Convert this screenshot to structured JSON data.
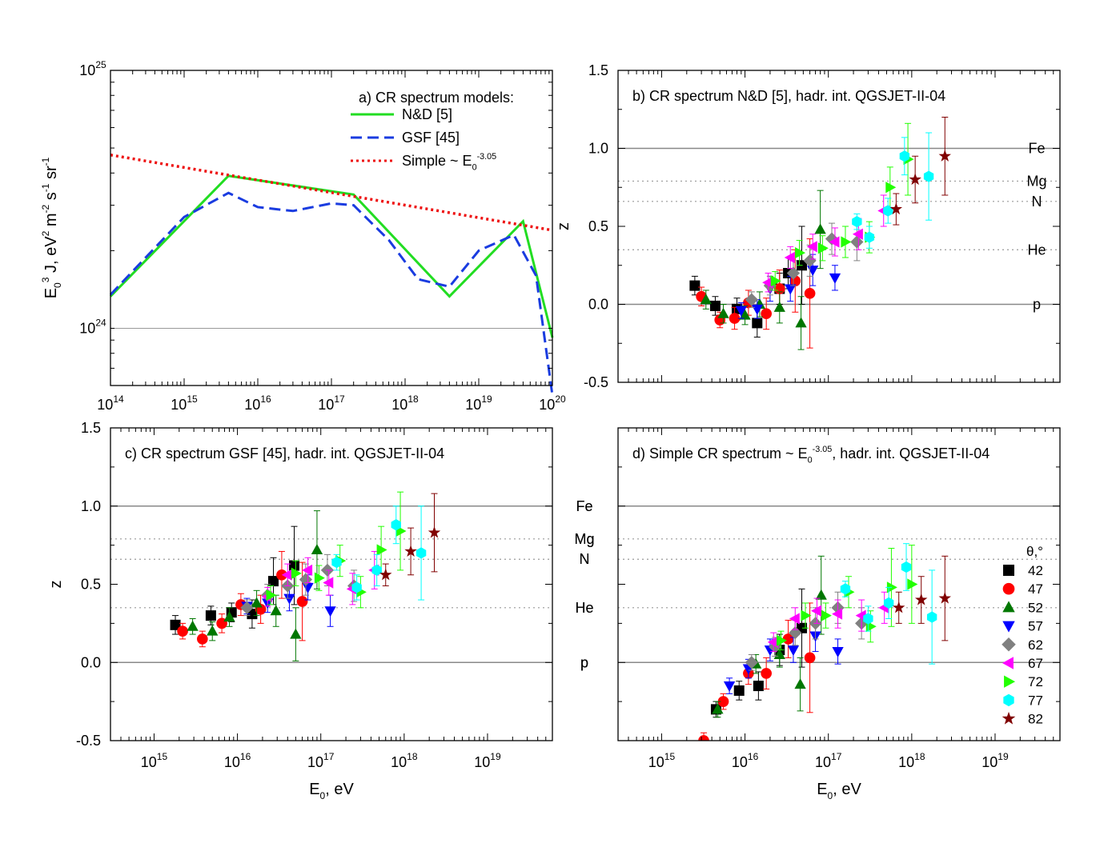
{
  "chart_data": [
    {
      "id": "a",
      "type": "line",
      "title": "a) CR spectrum models:",
      "ylabel": "E0^3 J, eV^2 m^-2 s^-1 sr^-1",
      "xlabel": "",
      "xscale": "log",
      "yscale": "log",
      "xlim": [
        100000000000000.0,
        1e+20
      ],
      "ylim": [
        6e+23,
        1e+25
      ],
      "xticks": [
        "10^14",
        "10^15",
        "10^16",
        "10^17",
        "10^18",
        "10^19",
        "10^20"
      ],
      "yticks": [
        "10^24",
        "10^25"
      ],
      "legend_position": "top-right",
      "series": [
        {
          "name": "N&D [5]",
          "color": "#22dd22",
          "style": "solid",
          "x": [
            100000000000000.0,
            4000000000000000.0,
            2e+17,
            4e+18,
            4e+19,
            1e+20
          ],
          "y": [
            1.33e+24,
            3.9e+24,
            3.3e+24,
            1.33e+24,
            2.6e+24,
            9.2e+23
          ]
        },
        {
          "name": "GSF [45]",
          "color": "#1a3ce0",
          "style": "dashed",
          "x": [
            100000000000000.0,
            1000000000000000.0,
            4000000000000000.0,
            1e+16,
            3e+16,
            1e+17,
            2e+17,
            6e+17,
            1.5e+18,
            4e+18,
            1e+19,
            3e+19,
            6e+19,
            1e+20
          ],
          "y": [
            1.35e+24,
            2.7e+24,
            3.35e+24,
            2.95e+24,
            2.85e+24,
            3.05e+24,
            3e+24,
            2.2e+24,
            1.55e+24,
            1.45e+24,
            2e+24,
            2.3e+24,
            1.6e+24,
            5.5e+23
          ]
        },
        {
          "name": "Simple ~ E0^-3.05",
          "color": "#ee1111",
          "style": "dotted",
          "x": [
            100000000000000.0,
            1e+20
          ],
          "y": [
            4.7e+24,
            2.4e+24
          ]
        }
      ],
      "reference_line": 1e+24
    },
    {
      "id": "b",
      "type": "scatter",
      "title": "b) CR spectrum N&D [5], hadr. int. QGSJET-II-04",
      "ylabel": "z",
      "xlabel": "",
      "xscale": "log",
      "xlim": [
        300000000000000.0,
        6e+19
      ],
      "ylim": [
        -0.5,
        1.5
      ],
      "yticks": [
        "-0.5",
        "0.0",
        "0.5",
        "1.0",
        "1.5"
      ],
      "xticks": [],
      "ref_lines": [
        {
          "label": "Fe",
          "y": 1.0,
          "style": "solid"
        },
        {
          "label": "Mg",
          "y": 0.79,
          "style": "dotted"
        },
        {
          "label": "N",
          "y": 0.66,
          "style": "dotted"
        },
        {
          "label": "He",
          "y": 0.35,
          "style": "dotted"
        },
        {
          "label": "p",
          "y": 0.0,
          "style": "solid"
        }
      ],
      "series": [
        {
          "name": "42",
          "x": [
            2500000000000000.0,
            4400000000000000.0,
            8000000000000000.0,
            1.4e+16,
            2.6e+16,
            4.8e+16,
            3.3e+16
          ],
          "y": [
            0.12,
            -0.01,
            -0.03,
            -0.12,
            0.1,
            0.25,
            0.2
          ],
          "err": [
            0.06,
            0.06,
            0.07,
            0.09,
            0.1,
            0.25,
            0.1
          ]
        },
        {
          "name": "47",
          "x": [
            3000000000000000.0,
            5000000000000000.0,
            7500000000000000.0,
            1.1e+16,
            1.8e+16,
            2.6e+16,
            4e+16,
            6e+16
          ],
          "y": [
            0.05,
            -0.1,
            -0.09,
            0.01,
            -0.06,
            0.1,
            0.15,
            0.07
          ],
          "err": [
            0.06,
            0.05,
            0.07,
            0.08,
            0.1,
            0.12,
            0.2,
            0.35
          ]
        },
        {
          "name": "52",
          "x": [
            3400000000000000.0,
            5500000000000000.0,
            1e+16,
            1.5e+16,
            2.6e+16,
            4.7e+16,
            8e+16
          ],
          "y": [
            0.03,
            -0.06,
            -0.07,
            0.0,
            -0.02,
            -0.12,
            0.48
          ],
          "err": [
            0.06,
            0.06,
            0.06,
            0.08,
            0.1,
            0.17,
            0.25
          ]
        },
        {
          "name": "57",
          "x": [
            9000000000000000.0,
            1.4e+16,
            2e+16,
            3.5e+16,
            6.5e+16,
            1.2e+17
          ],
          "y": [
            -0.04,
            -0.03,
            0.1,
            0.1,
            0.22,
            0.17
          ],
          "err": [
            0.05,
            0.06,
            0.08,
            0.08,
            0.1,
            0.08
          ]
        },
        {
          "name": "62",
          "x": [
            1.2e+16,
            2e+16,
            3.8e+16,
            6e+16,
            1.1e+17,
            2.2e+17
          ],
          "y": [
            0.03,
            0.12,
            0.2,
            0.28,
            0.42,
            0.4
          ],
          "err": [
            0.05,
            0.06,
            0.08,
            0.1,
            0.1,
            0.12
          ]
        },
        {
          "name": "67",
          "x": [
            1.9e+16,
            3.5e+16,
            6.5e+16,
            1.2e+17,
            2.3e+17,
            4.6e+17
          ],
          "y": [
            0.14,
            0.3,
            0.37,
            0.4,
            0.45,
            0.6
          ],
          "err": [
            0.06,
            0.07,
            0.08,
            0.09,
            0.1,
            0.1
          ]
        },
        {
          "name": "72",
          "x": [
            2.3e+16,
            4.5e+16,
            8.5e+16,
            1.6e+17,
            3.1e+17,
            5.5e+17,
            9e+17
          ],
          "y": [
            0.15,
            0.33,
            0.36,
            0.4,
            0.43,
            0.75,
            0.93
          ],
          "err": [
            0.06,
            0.08,
            0.08,
            0.1,
            0.1,
            0.13,
            0.23
          ]
        },
        {
          "name": "77",
          "x": [
            2.2e+17,
            3.1e+17,
            5.2e+17,
            8.2e+17,
            1.6e+18
          ],
          "y": [
            0.53,
            0.43,
            0.6,
            0.95,
            0.82
          ],
          "err": [
            0.05,
            0.07,
            0.08,
            0.12,
            0.28
          ]
        },
        {
          "name": "82",
          "x": [
            6.5e+17,
            1.1e+18,
            2.5e+18
          ],
          "y": [
            0.61,
            0.8,
            0.95
          ],
          "err": [
            0.1,
            0.15,
            0.25
          ]
        }
      ]
    },
    {
      "id": "c",
      "type": "scatter",
      "title": "c) CR spectrum GSF [45], hadr. int. QGSJET-II-04",
      "ylabel": "z",
      "xlabel": "E0, eV",
      "xscale": "log",
      "xlim": [
        300000000000000.0,
        6e+19
      ],
      "ylim": [
        -0.5,
        1.5
      ],
      "xticks": [
        "10^15",
        "10^16",
        "10^17",
        "10^18",
        "10^19"
      ],
      "yticks": [
        "-0.5",
        "0.0",
        "0.5",
        "1.0",
        "1.5"
      ],
      "ref_lines": [
        {
          "label": "Fe",
          "y": 1.0,
          "style": "solid"
        },
        {
          "label": "Mg",
          "y": 0.79,
          "style": "dotted"
        },
        {
          "label": "N",
          "y": 0.66,
          "style": "dotted"
        },
        {
          "label": "He",
          "y": 0.35,
          "style": "dotted"
        },
        {
          "label": "p",
          "y": 0.0,
          "style": "solid"
        }
      ],
      "series": [
        {
          "name": "42",
          "x": [
            1800000000000000.0,
            4800000000000000.0,
            8500000000000000.0,
            1.5e+16,
            2.7e+16,
            4.8e+16
          ],
          "y": [
            0.24,
            0.3,
            0.32,
            0.31,
            0.52,
            0.62
          ],
          "err": [
            0.06,
            0.06,
            0.06,
            0.09,
            0.15,
            0.25
          ]
        },
        {
          "name": "47",
          "x": [
            2200000000000000.0,
            3800000000000000.0,
            6500000000000000.0,
            1.1e+16,
            1.9e+16,
            3.4e+16,
            6e+16
          ],
          "y": [
            0.2,
            0.15,
            0.25,
            0.37,
            0.34,
            0.56,
            0.39
          ],
          "err": [
            0.05,
            0.05,
            0.06,
            0.07,
            0.09,
            0.15,
            0.25
          ]
        },
        {
          "name": "52",
          "x": [
            2900000000000000.0,
            5000000000000000.0,
            8000000000000000.0,
            1.7e+16,
            2.9e+16,
            5e+16,
            9e+16
          ],
          "y": [
            0.23,
            0.2,
            0.29,
            0.38,
            0.33,
            0.18,
            0.72
          ],
          "err": [
            0.05,
            0.06,
            0.06,
            0.08,
            0.1,
            0.17,
            0.25
          ]
        },
        {
          "name": "57",
          "x": [
            1.3e+16,
            2.3e+16,
            4.2e+16,
            7e+16,
            1.3e+17
          ],
          "y": [
            0.36,
            0.38,
            0.41,
            0.48,
            0.33
          ],
          "err": [
            0.05,
            0.06,
            0.08,
            0.08,
            0.1
          ]
        },
        {
          "name": "62",
          "x": [
            1.3e+16,
            2.3e+16,
            4e+16,
            6.6e+16,
            1.2e+17,
            2.5e+17
          ],
          "y": [
            0.35,
            0.43,
            0.49,
            0.53,
            0.59,
            0.49
          ],
          "err": [
            0.05,
            0.07,
            0.08,
            0.1,
            0.1,
            0.1
          ]
        },
        {
          "name": "67",
          "x": [
            2.3e+16,
            4e+16,
            7e+16,
            1.25e+17,
            2.4e+17,
            4.4e+17
          ],
          "y": [
            0.42,
            0.56,
            0.59,
            0.51,
            0.47,
            0.59
          ],
          "err": [
            0.06,
            0.07,
            0.08,
            0.08,
            0.1,
            0.12
          ]
        },
        {
          "name": "72",
          "x": [
            2.5e+16,
            5e+16,
            9.5e+16,
            1.7e+17,
            3e+17,
            5.3e+17,
            9e+17
          ],
          "y": [
            0.43,
            0.57,
            0.54,
            0.65,
            0.45,
            0.72,
            0.84
          ],
          "err": [
            0.06,
            0.08,
            0.08,
            0.1,
            0.1,
            0.15,
            0.25
          ]
        },
        {
          "name": "77",
          "x": [
            1.55e+17,
            2.7e+17,
            4.7e+17,
            8e+17,
            1.6e+18
          ],
          "y": [
            0.64,
            0.48,
            0.59,
            0.88,
            0.7
          ],
          "err": [
            0.05,
            0.08,
            0.1,
            0.12,
            0.3
          ]
        },
        {
          "name": "82",
          "x": [
            6e+17,
            1.2e+18,
            2.3e+18
          ],
          "y": [
            0.56,
            0.71,
            0.83
          ],
          "err": [
            0.07,
            0.15,
            0.25
          ]
        }
      ]
    },
    {
      "id": "d",
      "type": "scatter",
      "title": "d) Simple CR spectrum ~ E0^-3.05, hadr. int. QGSJET-II-04",
      "ylabel": "",
      "xlabel": "E0, eV",
      "xscale": "log",
      "xlim": [
        300000000000000.0,
        6e+19
      ],
      "ylim": [
        -0.5,
        1.5
      ],
      "xticks": [
        "10^15",
        "10^16",
        "10^17",
        "10^18",
        "10^19"
      ],
      "yticks": [],
      "ref_lines": [
        {
          "label": "Fe",
          "y": 1.0,
          "style": "solid"
        },
        {
          "label": "Mg",
          "y": 0.79,
          "style": "dotted"
        },
        {
          "label": "N",
          "y": 0.66,
          "style": "dotted"
        },
        {
          "label": "He",
          "y": 0.35,
          "style": "dotted"
        },
        {
          "label": "p",
          "y": 0.0,
          "style": "solid"
        }
      ],
      "legend_title": "θ,°",
      "legend_position": "right",
      "series": [
        {
          "name": "42",
          "x": [
            4500000000000000.0,
            8500000000000000.0,
            1.45e+16,
            2.6e+16,
            4.8e+16
          ],
          "y": [
            -0.3,
            -0.18,
            -0.15,
            0.08,
            0.22
          ],
          "err": [
            0.05,
            0.06,
            0.09,
            0.1,
            0.25
          ]
        },
        {
          "name": "47",
          "x": [
            3200000000000000.0,
            5500000000000000.0,
            1.1e+16,
            1.8e+16,
            3.3e+16,
            6e+16
          ],
          "y": [
            -0.5,
            -0.25,
            -0.07,
            -0.07,
            0.15,
            0.03
          ],
          "err": [
            0.05,
            0.05,
            0.07,
            0.1,
            0.12,
            0.35
          ]
        },
        {
          "name": "52",
          "x": [
            4700000000000000.0,
            1.35e+16,
            2.6e+16,
            4.6e+16,
            8.2e+16
          ],
          "y": [
            -0.3,
            -0.01,
            0.05,
            -0.14,
            0.43
          ],
          "err": [
            0.05,
            0.06,
            0.08,
            0.17,
            0.25
          ]
        },
        {
          "name": "57",
          "x": [
            6500000000000000.0,
            1.1e+16,
            2e+16,
            3.8e+16,
            7e+16,
            1.3e+17
          ],
          "y": [
            -0.15,
            -0.04,
            0.08,
            0.08,
            0.17,
            0.07
          ],
          "err": [
            0.05,
            0.06,
            0.07,
            0.08,
            0.1,
            0.08
          ]
        },
        {
          "name": "62",
          "x": [
            1.2e+16,
            2.3e+16,
            4e+16,
            7e+16,
            1.3e+17,
            2.5e+17
          ],
          "y": [
            0.0,
            0.1,
            0.19,
            0.25,
            0.35,
            0.25
          ],
          "err": [
            0.05,
            0.06,
            0.08,
            0.1,
            0.1,
            0.1
          ]
        },
        {
          "name": "67",
          "x": [
            2.2e+16,
            4e+16,
            7.3e+16,
            1.3e+17,
            2.5e+17,
            4.7e+17
          ],
          "y": [
            0.13,
            0.28,
            0.33,
            0.31,
            0.3,
            0.35
          ],
          "err": [
            0.06,
            0.07,
            0.08,
            0.09,
            0.1,
            0.1
          ]
        },
        {
          "name": "72",
          "x": [
            2.7e+16,
            5.3e+16,
            9.3e+16,
            1.75e+17,
            3.2e+17,
            5.7e+17,
            1e+18
          ],
          "y": [
            0.14,
            0.3,
            0.3,
            0.45,
            0.23,
            0.48,
            0.5
          ],
          "err": [
            0.06,
            0.08,
            0.08,
            0.1,
            0.1,
            0.25,
            0.25
          ]
        },
        {
          "name": "77",
          "x": [
            1.6e+17,
            3e+17,
            5.3e+17,
            8.6e+17,
            1.75e+18
          ],
          "y": [
            0.47,
            0.28,
            0.38,
            0.61,
            0.29
          ],
          "err": [
            0.05,
            0.08,
            0.1,
            0.15,
            0.3
          ]
        },
        {
          "name": "82",
          "x": [
            7e+17,
            1.3e+18,
            2.5e+18
          ],
          "y": [
            0.35,
            0.4,
            0.41
          ],
          "err": [
            0.1,
            0.15,
            0.27
          ]
        }
      ]
    }
  ],
  "legend": {
    "title": "θ,°",
    "entries": [
      {
        "name": "42",
        "marker": "square",
        "color": "#000000"
      },
      {
        "name": "47",
        "marker": "circle",
        "color": "#ff0000"
      },
      {
        "name": "52",
        "marker": "triangle-up",
        "color": "#007700"
      },
      {
        "name": "57",
        "marker": "triangle-down",
        "color": "#0000ff"
      },
      {
        "name": "62",
        "marker": "diamond",
        "color": "#808080"
      },
      {
        "name": "67",
        "marker": "triangle-left",
        "color": "#ff00ff"
      },
      {
        "name": "72",
        "marker": "triangle-right",
        "color": "#22ff00"
      },
      {
        "name": "77",
        "marker": "hexagon",
        "color": "#00ffff"
      },
      {
        "name": "82",
        "marker": "star",
        "color": "#800000"
      }
    ]
  }
}
